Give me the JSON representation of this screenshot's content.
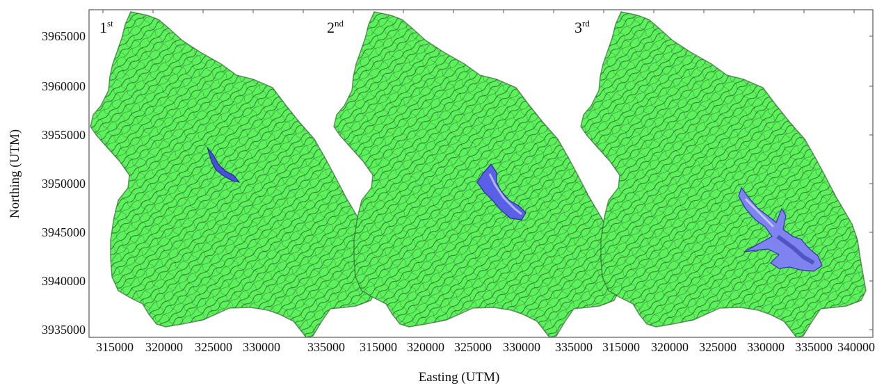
{
  "figure": {
    "x_axis_title": "Easting (UTM)",
    "y_axis_title": "Northing (UTM)",
    "y_ticks": [
      "3965000",
      "3960000",
      "3955000",
      "3950000",
      "3945000",
      "3940000",
      "3935000"
    ],
    "x_ticks_per_panel": [
      [
        "315000",
        "320000",
        "325000",
        "330000",
        "335000"
      ],
      [
        "315000",
        "320000",
        "325000",
        "330000",
        "335000"
      ],
      [
        "315000",
        "320000",
        "325000",
        "330000",
        "335000",
        "340000"
      ]
    ],
    "colors": {
      "terrain": "#5cf25c",
      "contour": "#1f3a1f",
      "water": "#4a4fd8",
      "water_edge": "#bfc2ff"
    }
  },
  "panels": [
    {
      "label": "1",
      "superscript": "st",
      "water_extent": "small"
    },
    {
      "label": "2",
      "superscript": "nd",
      "water_extent": "medium"
    },
    {
      "label": "3",
      "superscript": "rd",
      "water_extent": "large"
    }
  ]
}
